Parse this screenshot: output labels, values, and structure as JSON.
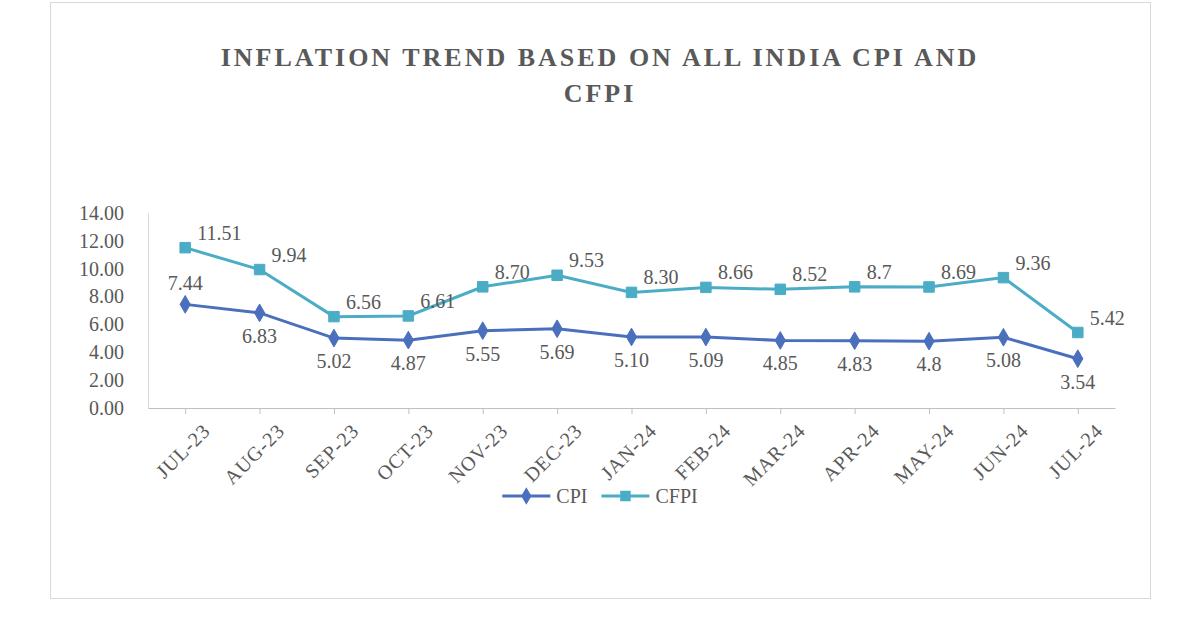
{
  "chart_data": {
    "type": "line",
    "title": "INFLATION TREND BASED ON ALL INDIA CPI AND CFPI",
    "categories": [
      "JUL-23",
      "AUG-23",
      "SEP-23",
      "OCT-23",
      "NOV-23",
      "DEC-23",
      "JAN-24",
      "FEB-24",
      "MAR-24",
      "APR-24",
      "MAY-24",
      "JUN-24",
      "JUL-24"
    ],
    "series": [
      {
        "name": "CPI",
        "color": "#4a6fbd",
        "marker": "diamond",
        "values": [
          7.44,
          6.83,
          5.02,
          4.87,
          5.55,
          5.69,
          5.1,
          5.09,
          4.85,
          4.83,
          4.8,
          5.08,
          3.54
        ],
        "value_labels": [
          "7.44",
          "6.83",
          "5.02",
          "4.87",
          "5.55",
          "5.69",
          "5.10",
          "5.09",
          "4.85",
          "4.83",
          "4.8",
          "5.08",
          "3.54"
        ]
      },
      {
        "name": "CFPI",
        "color": "#4bacc6",
        "marker": "square",
        "values": [
          11.51,
          9.94,
          6.56,
          6.61,
          8.7,
          9.53,
          8.3,
          8.66,
          8.52,
          8.7,
          8.69,
          9.36,
          5.42
        ],
        "value_labels": [
          "11.51",
          "9.94",
          "6.56",
          "6.61",
          "8.70",
          "9.53",
          "8.30",
          "8.66",
          "8.52",
          "8.7",
          "8.69",
          "9.36",
          "5.42"
        ]
      }
    ],
    "ylim": [
      0,
      14
    ],
    "yticks": [
      {
        "value": 0,
        "label": "0.00"
      },
      {
        "value": 2,
        "label": "2.00"
      },
      {
        "value": 4,
        "label": "4.00"
      },
      {
        "value": 6,
        "label": "6.00"
      },
      {
        "value": 8,
        "label": "8.00"
      },
      {
        "value": 10,
        "label": "10.00"
      },
      {
        "value": 12,
        "label": "12.00"
      },
      {
        "value": 14,
        "label": "14.00"
      }
    ],
    "grid": false,
    "legend": "bottom",
    "data_labels": true
  }
}
